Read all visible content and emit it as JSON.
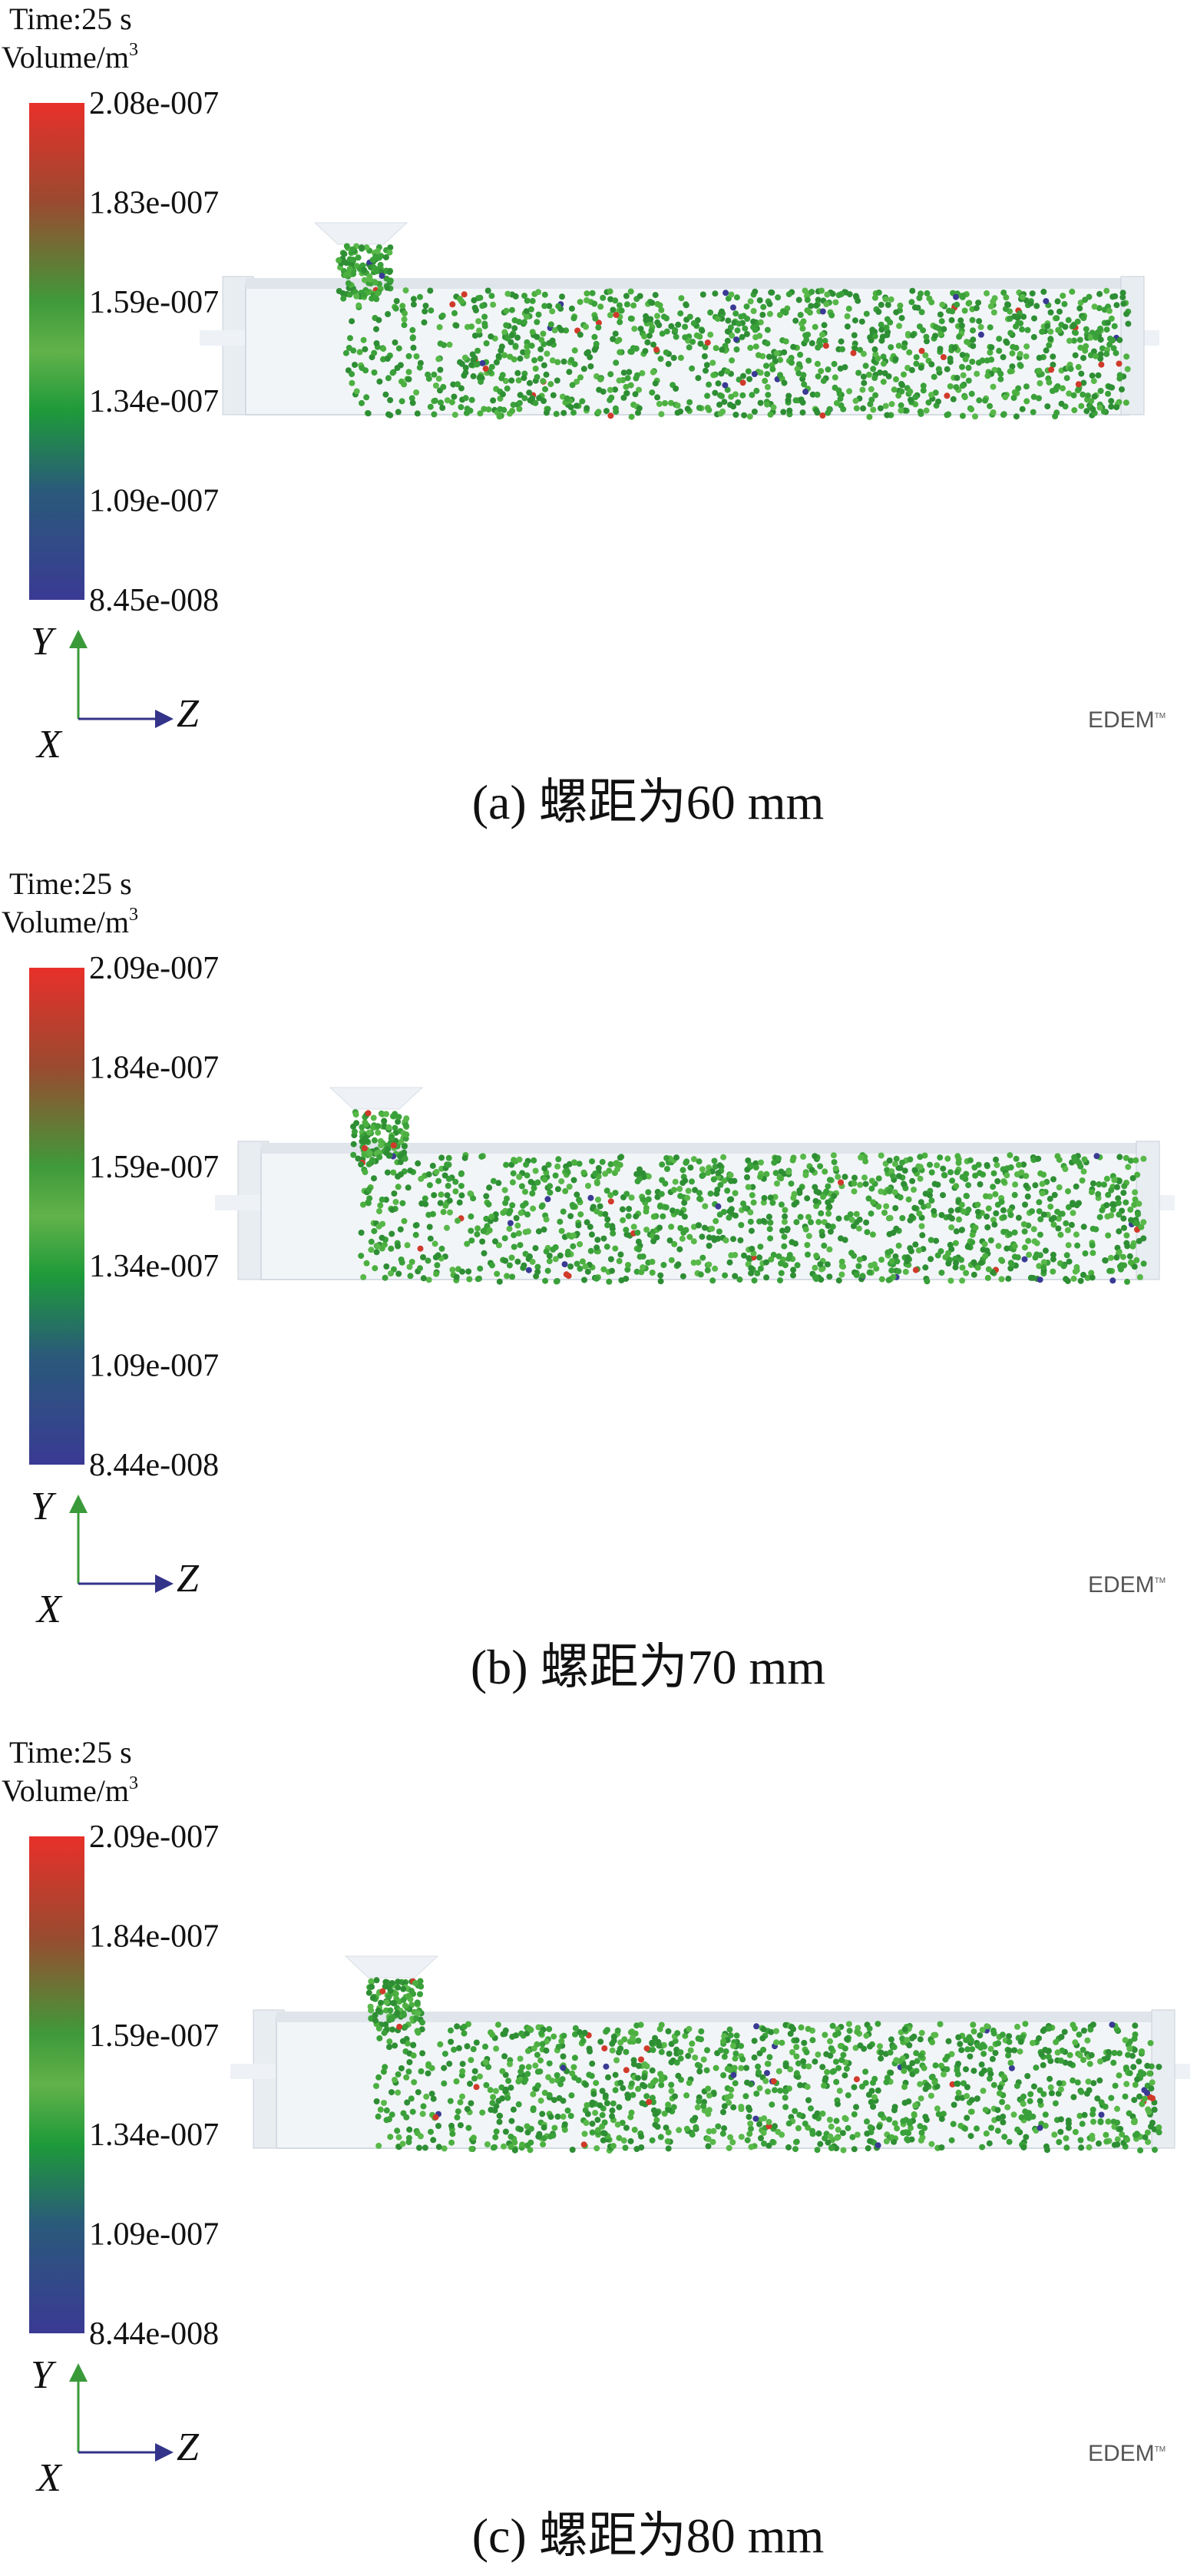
{
  "panels": [
    {
      "time": "Time:25 s",
      "volume_label": "Volume/m",
      "volume_exp": "3",
      "colorbar_ticks": [
        "2.08e-007",
        "1.83e-007",
        "1.59e-007",
        "1.34e-007",
        "1.09e-007",
        "8.45e-008"
      ],
      "axis_y": "Y",
      "axis_z": "Z",
      "axis_x": "X",
      "logo": "EDEM",
      "logo_tm": "TM",
      "caption": "(a)  螺距为60 mm"
    },
    {
      "time": "Time:25 s",
      "volume_label": "Volume/m",
      "volume_exp": "3",
      "colorbar_ticks": [
        "2.09e-007",
        "1.84e-007",
        "1.59e-007",
        "1.34e-007",
        "1.09e-007",
        "8.44e-008"
      ],
      "axis_y": "Y",
      "axis_z": "Z",
      "axis_x": "X",
      "logo": "EDEM",
      "logo_tm": "TM",
      "caption": "(b)  螺距为70 mm"
    },
    {
      "time": "Time:25 s",
      "volume_label": "Volume/m",
      "volume_exp": "3",
      "colorbar_ticks": [
        "2.09e-007",
        "1.84e-007",
        "1.59e-007",
        "1.34e-007",
        "1.09e-007",
        "8.44e-008"
      ],
      "axis_y": "Y",
      "axis_z": "Z",
      "axis_x": "X",
      "logo": "EDEM",
      "logo_tm": "TM",
      "caption": "(c)  螺距为80 mm"
    }
  ]
}
